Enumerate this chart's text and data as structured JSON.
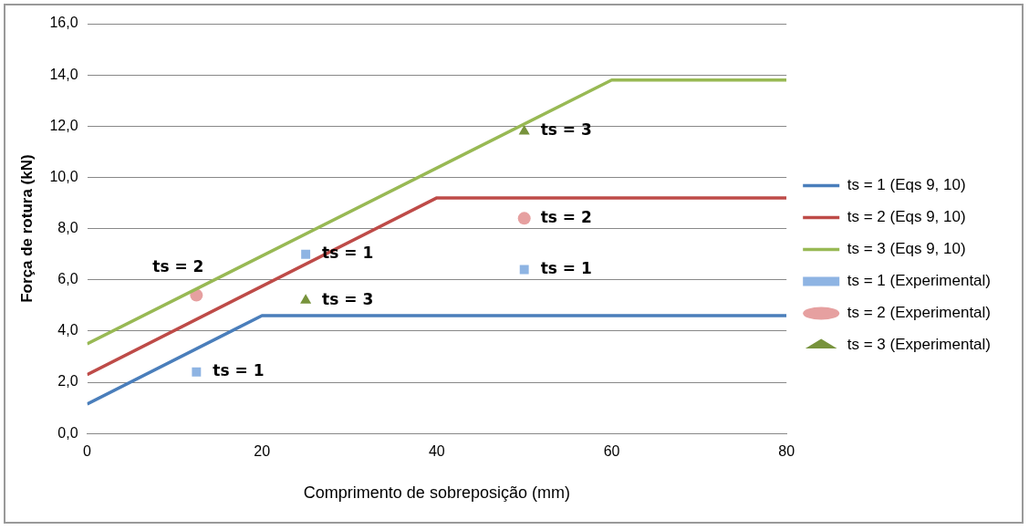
{
  "chart_data": {
    "type": "line",
    "xlabel": "Comprimento de sobreposição (mm)",
    "ylabel": "Força de rotura (kN)",
    "xlim": [
      0,
      80
    ],
    "xticks": [
      0,
      20,
      40,
      60,
      80
    ],
    "ylim": [
      0,
      16
    ],
    "yticks": [
      {
        "value": 0,
        "label": "0,0"
      },
      {
        "value": 2,
        "label": "2,0"
      },
      {
        "value": 4,
        "label": "4,0"
      },
      {
        "value": 6,
        "label": "6,0"
      },
      {
        "value": 8,
        "label": "8,0"
      },
      {
        "value": 10,
        "label": "10,0"
      },
      {
        "value": 12,
        "label": "12,0"
      },
      {
        "value": 14,
        "label": "14,0"
      },
      {
        "value": 16,
        "label": "16,0"
      }
    ],
    "grid": "y",
    "legend": "right",
    "series": [
      {
        "name": "ts = 1 (Eqs 9, 10)",
        "marker": "none",
        "color": "#4a7ebb",
        "x": [
          0,
          20,
          80
        ],
        "values": [
          1.15,
          4.6,
          4.6
        ]
      },
      {
        "name": "ts = 2 (Eqs 9, 10)",
        "marker": "none",
        "color": "#be4b48",
        "x": [
          0,
          40,
          80
        ],
        "values": [
          2.3,
          9.2,
          9.2
        ]
      },
      {
        "name": "ts = 3 (Eqs 9, 10)",
        "marker": "none",
        "color": "#98b954",
        "x": [
          0,
          60,
          80
        ],
        "values": [
          3.5,
          13.8,
          13.8
        ]
      },
      {
        "name": "ts = 1 (Experimental)",
        "type": "scatter",
        "marker": "square",
        "color": "#8eb4e3",
        "x": [
          12.5,
          25,
          50
        ],
        "values": [
          2.4,
          7.0,
          6.4
        ]
      },
      {
        "name": "ts = 2 (Experimental)",
        "type": "scatter",
        "marker": "circle",
        "color": "#e6a0a0",
        "x": [
          12.5,
          50
        ],
        "values": [
          5.4,
          8.4
        ]
      },
      {
        "name": "ts = 3 (Experimental)",
        "type": "scatter",
        "marker": "triangle",
        "color": "#77933c",
        "x": [
          25,
          50
        ],
        "values": [
          5.2,
          11.8
        ]
      }
    ],
    "annotations": [
      {
        "text": "ts = 1",
        "x": 12.5,
        "y": 2.4
      },
      {
        "text": "ts = 2",
        "x": 12.5,
        "y": 5.4
      },
      {
        "text": "ts = 1",
        "x": 25,
        "y": 7.0
      },
      {
        "text": "ts = 3",
        "x": 25,
        "y": 5.2
      },
      {
        "text": "ts = 3",
        "x": 50,
        "y": 11.8
      },
      {
        "text": "ts = 2",
        "x": 50,
        "y": 8.4
      },
      {
        "text": "ts = 1",
        "x": 50,
        "y": 6.4
      }
    ]
  }
}
